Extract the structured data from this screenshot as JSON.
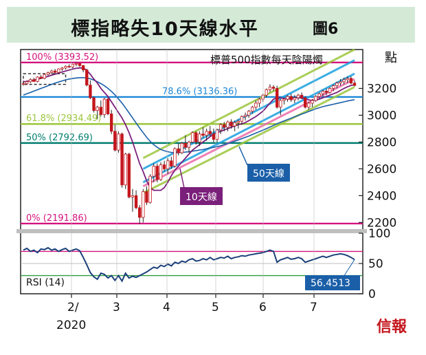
{
  "header": {
    "title": "標指略失10天線水平",
    "figure_label": "圖6"
  },
  "brand": "信報",
  "chart_data": {
    "type": "candlestick",
    "title": "標指略失10天線水平",
    "subtitle": "標普500指數每天陰陽燭",
    "unit_label": "點",
    "x_tick_labels": [
      "2/",
      "3",
      "4",
      "5",
      "6",
      "7"
    ],
    "x_year_label": "2020",
    "y_ticks": [
      2200,
      2400,
      2600,
      2800,
      3000,
      3200
    ],
    "ylim": [
      2130,
      3490
    ],
    "fib_levels": [
      {
        "label": "100% (3393.52)",
        "value": 3393.52,
        "color": "#d4127d"
      },
      {
        "label": "78.6% (3136.36)",
        "value": 3136.36,
        "color": "#1a86d6"
      },
      {
        "label": "61.8% (2934.49)",
        "value": 2934.49,
        "color": "#9bc63a"
      },
      {
        "label": "50% (2792.69)",
        "value": 2792.69,
        "color": "#007d6e"
      },
      {
        "label": "0% (2191.86)",
        "value": 2191.86,
        "color": "#d4127d"
      }
    ],
    "ma_labels": {
      "ma10": "10天線",
      "ma50": "50天線"
    },
    "ohlc": [
      [
        3230,
        3245,
        3220,
        3235
      ],
      [
        3235,
        3260,
        3225,
        3250
      ],
      [
        3250,
        3275,
        3240,
        3265
      ],
      [
        3265,
        3280,
        3248,
        3252
      ],
      [
        3252,
        3290,
        3245,
        3285
      ],
      [
        3285,
        3300,
        3270,
        3275
      ],
      [
        3275,
        3310,
        3268,
        3305
      ],
      [
        3305,
        3325,
        3295,
        3318
      ],
      [
        3318,
        3340,
        3305,
        3330
      ],
      [
        3330,
        3345,
        3310,
        3320
      ],
      [
        3320,
        3350,
        3312,
        3345
      ],
      [
        3345,
        3360,
        3330,
        3352
      ],
      [
        3352,
        3372,
        3340,
        3365
      ],
      [
        3365,
        3380,
        3352,
        3360
      ],
      [
        3360,
        3385,
        3350,
        3380
      ],
      [
        3380,
        3393,
        3365,
        3386
      ],
      [
        3386,
        3390,
        3360,
        3370
      ],
      [
        3370,
        3375,
        3320,
        3338
      ],
      [
        3338,
        3345,
        3215,
        3225
      ],
      [
        3225,
        3260,
        3120,
        3130
      ],
      [
        3130,
        3140,
        3020,
        3035
      ],
      [
        3035,
        3070,
        2970,
        3060
      ],
      [
        3060,
        3110,
        2990,
        3005
      ],
      [
        3005,
        3130,
        2980,
        3120
      ],
      [
        3120,
        3130,
        3000,
        3010
      ],
      [
        3010,
        3040,
        2860,
        2880
      ],
      [
        2880,
        2930,
        2730,
        2740
      ],
      [
        2740,
        2880,
        2720,
        2860
      ],
      [
        2860,
        2870,
        2460,
        2480
      ],
      [
        2480,
        2720,
        2450,
        2710
      ],
      [
        2710,
        2720,
        2380,
        2390
      ],
      [
        2390,
        2450,
        2280,
        2400
      ],
      [
        2400,
        2440,
        2300,
        2310
      ],
      [
        2310,
        2330,
        2191,
        2238
      ],
      [
        2238,
        2450,
        2200,
        2430
      ],
      [
        2430,
        2470,
        2330,
        2350
      ],
      [
        2350,
        2560,
        2340,
        2545
      ],
      [
        2545,
        2640,
        2500,
        2620
      ],
      [
        2620,
        2640,
        2500,
        2520
      ],
      [
        2520,
        2650,
        2510,
        2630
      ],
      [
        2630,
        2660,
        2580,
        2600
      ],
      [
        2600,
        2680,
        2560,
        2660
      ],
      [
        2660,
        2690,
        2600,
        2620
      ],
      [
        2620,
        2760,
        2610,
        2750
      ],
      [
        2750,
        2790,
        2700,
        2720
      ],
      [
        2720,
        2800,
        2710,
        2790
      ],
      [
        2790,
        2850,
        2740,
        2760
      ],
      [
        2760,
        2810,
        2720,
        2800
      ],
      [
        2800,
        2880,
        2790,
        2870
      ],
      [
        2870,
        2880,
        2780,
        2800
      ],
      [
        2800,
        2880,
        2770,
        2860
      ],
      [
        2860,
        2910,
        2830,
        2850
      ],
      [
        2850,
        2900,
        2810,
        2880
      ],
      [
        2880,
        2920,
        2840,
        2860
      ],
      [
        2860,
        2900,
        2800,
        2820
      ],
      [
        2820,
        2900,
        2800,
        2890
      ],
      [
        2890,
        2940,
        2860,
        2930
      ],
      [
        2930,
        2950,
        2880,
        2910
      ],
      [
        2910,
        2960,
        2880,
        2950
      ],
      [
        2950,
        2970,
        2900,
        2920
      ],
      [
        2920,
        2960,
        2880,
        2945
      ],
      [
        2945,
        2970,
        2900,
        2955
      ],
      [
        2955,
        3000,
        2930,
        2990
      ],
      [
        2990,
        3020,
        2960,
        3000
      ],
      [
        3000,
        3040,
        2980,
        3030
      ],
      [
        3030,
        3070,
        3010,
        3060
      ],
      [
        3060,
        3110,
        3040,
        3090
      ],
      [
        3090,
        3130,
        3060,
        3120
      ],
      [
        3120,
        3160,
        3100,
        3150
      ],
      [
        3150,
        3200,
        3130,
        3190
      ],
      [
        3190,
        3232,
        3170,
        3210
      ],
      [
        3210,
        3225,
        3180,
        3200
      ],
      [
        3200,
        3220,
        3050,
        3060
      ],
      [
        3060,
        3120,
        3000,
        3110
      ],
      [
        3110,
        3130,
        3080,
        3120
      ],
      [
        3120,
        3150,
        3100,
        3140
      ],
      [
        3140,
        3160,
        3100,
        3115
      ],
      [
        3115,
        3150,
        3090,
        3130
      ],
      [
        3130,
        3160,
        3110,
        3150
      ],
      [
        3150,
        3170,
        3120,
        3130
      ],
      [
        3130,
        3140,
        3050,
        3060
      ],
      [
        3060,
        3100,
        3040,
        3090
      ],
      [
        3090,
        3120,
        3060,
        3110
      ],
      [
        3110,
        3150,
        3100,
        3140
      ],
      [
        3140,
        3170,
        3120,
        3160
      ],
      [
        3160,
        3190,
        3140,
        3180
      ],
      [
        3180,
        3200,
        3150,
        3170
      ],
      [
        3170,
        3210,
        3160,
        3200
      ],
      [
        3200,
        3230,
        3180,
        3220
      ],
      [
        3220,
        3250,
        3200,
        3240
      ],
      [
        3240,
        3270,
        3220,
        3250
      ],
      [
        3250,
        3280,
        3230,
        3265
      ],
      [
        3265,
        3290,
        3240,
        3275
      ],
      [
        3275,
        3290,
        3230,
        3240
      ],
      [
        3240,
        3260,
        3215,
        3222
      ]
    ],
    "ma10": [
      3250,
      3252,
      3258,
      3263,
      3268,
      3275,
      3282,
      3290,
      3298,
      3306,
      3314,
      3322,
      3330,
      3337,
      3344,
      3350,
      3353,
      3352,
      3335,
      3305,
      3270,
      3240,
      3200,
      3170,
      3140,
      3100,
      3060,
      3020,
      2980,
      2930,
      2870,
      2800,
      2720,
      2640,
      2580,
      2510,
      2460,
      2440,
      2440,
      2440,
      2460,
      2500,
      2550,
      2590,
      2620,
      2650,
      2680,
      2710,
      2740,
      2760,
      2780,
      2800,
      2820,
      2840,
      2860,
      2870,
      2880,
      2890,
      2900,
      2910,
      2920,
      2930,
      2935,
      2945,
      2960,
      2975,
      2990,
      3010,
      3030,
      3060,
      3090,
      3120,
      3130,
      3130,
      3125,
      3120,
      3125,
      3130,
      3130,
      3128,
      3120,
      3115,
      3110,
      3112,
      3120,
      3130,
      3140,
      3150,
      3160,
      3170,
      3185,
      3200,
      3212,
      3222,
      3228
    ],
    "ma50": [
      3150,
      3160,
      3170,
      3180,
      3190,
      3200,
      3210,
      3220,
      3230,
      3240,
      3248,
      3256,
      3264,
      3270,
      3274,
      3278,
      3280,
      3280,
      3278,
      3272,
      3262,
      3250,
      3236,
      3220,
      3200,
      3178,
      3152,
      3122,
      3090,
      3055,
      3018,
      2980,
      2942,
      2905,
      2870,
      2835,
      2805,
      2780,
      2760,
      2745,
      2735,
      2728,
      2722,
      2720,
      2720,
      2722,
      2725,
      2728,
      2732,
      2736,
      2740,
      2744,
      2750,
      2755,
      2760,
      2766,
      2772,
      2780,
      2788,
      2797,
      2806,
      2815,
      2825,
      2835,
      2845,
      2856,
      2867,
      2878,
      2889,
      2900,
      2912,
      2924,
      2936,
      2947,
      2958,
      2968,
      2978,
      2988,
      2998,
      3008,
      3018,
      3028,
      3038,
      3048,
      3056,
      3064,
      3070,
      3076,
      3082,
      3088,
      3094,
      3100,
      3106,
      3111,
      3116
    ],
    "channels": [
      {
        "color": "#1a9fe0",
        "from": [
          34,
          2500
        ],
        "to": [
          94,
          3310
        ]
      },
      {
        "color": "#1a9fe0",
        "from": [
          34,
          2600
        ],
        "to": [
          94,
          3410
        ]
      },
      {
        "color": "#9bc63a",
        "from": [
          34,
          2420
        ],
        "to": [
          94,
          3210
        ]
      },
      {
        "color": "#9bc63a",
        "from": [
          34,
          2680
        ],
        "to": [
          94,
          3490
        ]
      },
      {
        "color": "#ec6aa8",
        "from": [
          34,
          2470
        ],
        "to": [
          94,
          3270
        ]
      }
    ],
    "rsi": {
      "label": "RSI (14)",
      "current_value": "56.4513",
      "levels": [
        70,
        30
      ],
      "y_ticks": [
        0,
        50,
        100
      ],
      "values": [
        72,
        75,
        70,
        72,
        68,
        74,
        73,
        76,
        72,
        74,
        70,
        73,
        75,
        70,
        72,
        74,
        71,
        60,
        48,
        35,
        28,
        24,
        34,
        32,
        26,
        30,
        22,
        30,
        21,
        34,
        26,
        29,
        27,
        30,
        33,
        36,
        40,
        44,
        42,
        47,
        45,
        49,
        46,
        52,
        50,
        54,
        52,
        56,
        58,
        54,
        55,
        58,
        56,
        60,
        56,
        58,
        60,
        59,
        62,
        58,
        60,
        61,
        63,
        62,
        64,
        65,
        66,
        67,
        68,
        70,
        72,
        70,
        52,
        56,
        58,
        60,
        57,
        58,
        60,
        58,
        52,
        54,
        56,
        58,
        60,
        62,
        60,
        62,
        64,
        65,
        66,
        65,
        63,
        60,
        56.45
      ]
    }
  }
}
